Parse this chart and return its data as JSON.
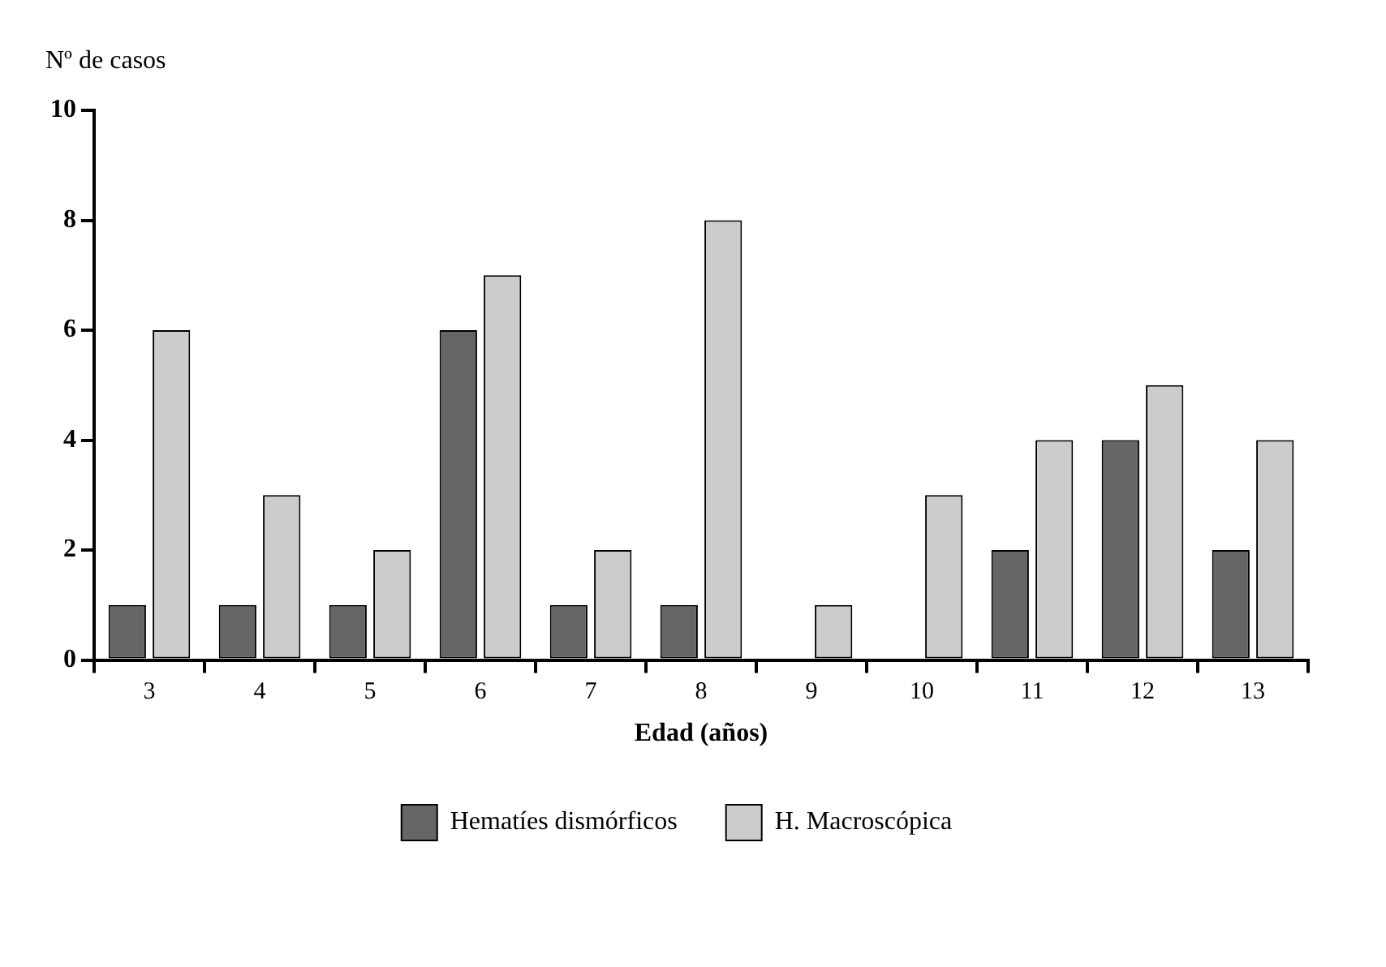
{
  "chart_data": {
    "type": "bar",
    "ylabel": "Nº de casos",
    "xlabel": "Edad (años)",
    "categories": [
      "3",
      "4",
      "5",
      "6",
      "7",
      "8",
      "9",
      "10",
      "11",
      "12",
      "13"
    ],
    "series": [
      {
        "name": "Hematíes dismórficos",
        "color": "#666666",
        "values": [
          1,
          1,
          1,
          6,
          1,
          1,
          0,
          0,
          2,
          4,
          2
        ]
      },
      {
        "name": "H. Macroscópica",
        "color": "#cccccc",
        "values": [
          6,
          3,
          2,
          7,
          2,
          8,
          1,
          3,
          4,
          5,
          4
        ]
      }
    ],
    "ylim": [
      0,
      10
    ],
    "yticks": [
      0,
      2,
      4,
      6,
      8,
      10
    ],
    "grid": false,
    "legend": "bottom"
  }
}
